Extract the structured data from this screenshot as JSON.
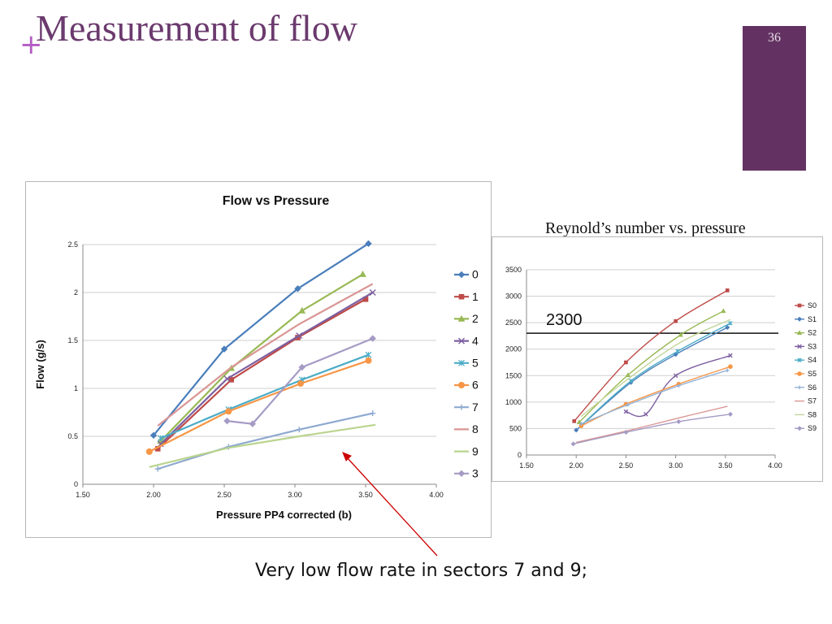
{
  "slide": {
    "plus": "+",
    "title": "Measurement of flow",
    "number": "36",
    "right_title": "Reynold’s number  vs. pressure",
    "caption": "Very low flow rate in sectors 7 and 9;",
    "accent_color": "#633262",
    "arrow_color": "#cc0000"
  },
  "chart_data": [
    {
      "type": "line",
      "title": "Flow vs Pressure",
      "xlabel": "Pressure PP4 corrected (b)",
      "ylabel": "Flow (g/s)",
      "xlim": [
        1.5,
        4.0
      ],
      "ylim": [
        0,
        2.5
      ],
      "xticks": [
        "1.50",
        "2.00",
        "2.50",
        "3.00",
        "3.50",
        "4.00"
      ],
      "yticks": [
        "0",
        "0.5",
        "1",
        "1.5",
        "2",
        "2.5"
      ],
      "grid": "horizontal",
      "legend": "right",
      "series": [
        {
          "name": "0",
          "color": "#4a7ebb",
          "marker": "diamond",
          "x": [
            2.0,
            2.5,
            3.02,
            3.52
          ],
          "y": [
            0.51,
            1.41,
            2.04,
            2.51
          ]
        },
        {
          "name": "1",
          "color": "#be4b48",
          "marker": "square",
          "x": [
            2.03,
            2.55,
            3.02,
            3.5
          ],
          "y": [
            0.37,
            1.09,
            1.53,
            1.93
          ]
        },
        {
          "name": "2",
          "color": "#98b954",
          "marker": "triangle",
          "x": [
            2.05,
            2.55,
            3.05,
            3.48
          ],
          "y": [
            0.45,
            1.21,
            1.81,
            2.19
          ]
        },
        {
          "name": "4",
          "color": "#7d60a0",
          "marker": "x",
          "x": [
            2.05,
            2.52,
            3.03,
            3.55
          ],
          "y": [
            0.42,
            1.1,
            1.55,
            2.0
          ]
        },
        {
          "name": "5",
          "color": "#4bacc6",
          "marker": "star",
          "x": [
            2.05,
            2.53,
            3.05,
            3.52
          ],
          "y": [
            0.48,
            0.78,
            1.09,
            1.35
          ]
        },
        {
          "name": "6",
          "color": "#f79646",
          "marker": "circle",
          "x": [
            1.97,
            2.53,
            3.04,
            3.52
          ],
          "y": [
            0.34,
            0.76,
            1.05,
            1.29
          ]
        },
        {
          "name": "7",
          "color": "#8ea9d0",
          "marker": "plus",
          "x": [
            2.03,
            2.53,
            3.03,
            3.55
          ],
          "y": [
            0.16,
            0.39,
            0.57,
            0.74
          ]
        },
        {
          "name": "8",
          "color": "#d99694",
          "marker": "none",
          "x": [
            2.03,
            2.55,
            3.03,
            3.55
          ],
          "y": [
            0.61,
            1.22,
            1.67,
            2.09
          ]
        },
        {
          "name": "9",
          "color": "#b9d48d",
          "marker": "none",
          "x": [
            1.97,
            2.53,
            3.03,
            3.57
          ],
          "y": [
            0.18,
            0.38,
            0.5,
            0.62
          ]
        },
        {
          "name": "3",
          "color": "#a59bc4",
          "marker": "diamond",
          "x": [
            2.52,
            2.7,
            3.05,
            3.55
          ],
          "y": [
            0.66,
            0.63,
            1.22,
            1.52
          ]
        }
      ],
      "annotation": "Very low flow rate in sectors 7 and 9;"
    },
    {
      "type": "line",
      "title": "Reynold’s number  vs. pressure",
      "xlim": [
        1.5,
        4.0
      ],
      "ylim": [
        0,
        3500
      ],
      "xticks": [
        "1.50",
        "2.00",
        "2.50",
        "3.00",
        "3.50",
        "4.00"
      ],
      "yticks": [
        "0",
        "500",
        "1000",
        "1500",
        "2000",
        "2500",
        "3000",
        "3500"
      ],
      "grid": "horizontal",
      "legend": "right",
      "reference_line": {
        "value": 2300,
        "label": "2300"
      },
      "series": [
        {
          "name": "S0",
          "color": "#be4b48",
          "marker": "square",
          "x": [
            1.98,
            2.5,
            3.0,
            3.52
          ],
          "y": [
            640,
            1750,
            2530,
            3110
          ]
        },
        {
          "name": "S1",
          "color": "#4a7ebb",
          "marker": "diamond",
          "x": [
            2.0,
            2.55,
            3.0,
            3.52
          ],
          "y": [
            470,
            1370,
            1900,
            2410
          ]
        },
        {
          "name": "S2",
          "color": "#98b954",
          "marker": "triangle",
          "x": [
            2.03,
            2.52,
            3.05,
            3.48
          ],
          "y": [
            620,
            1510,
            2270,
            2720
          ]
        },
        {
          "name": "S3",
          "color": "#7d60a0",
          "marker": "x",
          "x": [
            2.5,
            2.7,
            3.0,
            3.55
          ],
          "y": [
            820,
            770,
            1500,
            1880
          ]
        },
        {
          "name": "S4",
          "color": "#4bacc6",
          "marker": "star",
          "x": [
            2.05,
            2.55,
            3.02,
            3.55
          ],
          "y": [
            560,
            1400,
            1960,
            2490
          ]
        },
        {
          "name": "S5",
          "color": "#f79646",
          "marker": "circle",
          "x": [
            2.05,
            2.5,
            3.03,
            3.55
          ],
          "y": [
            550,
            960,
            1340,
            1670
          ]
        },
        {
          "name": "S6",
          "color": "#95b3d7",
          "marker": "plus",
          "x": [
            2.05,
            2.52,
            3.03,
            3.52
          ],
          "y": [
            590,
            950,
            1310,
            1600
          ]
        },
        {
          "name": "S7",
          "color": "#d99694",
          "marker": "none",
          "x": [
            2.0,
            2.52,
            3.03,
            3.52
          ],
          "y": [
            240,
            460,
            700,
            920
          ]
        },
        {
          "name": "S8",
          "color": "#c3d69b",
          "marker": "none",
          "x": [
            2.05,
            2.53,
            3.05,
            3.55
          ],
          "y": [
            730,
            1450,
            2130,
            2560
          ]
        },
        {
          "name": "S9",
          "color": "#a59bc4",
          "marker": "diamond",
          "x": [
            1.97,
            2.5,
            3.03,
            3.55
          ],
          "y": [
            210,
            430,
            630,
            770
          ]
        }
      ]
    }
  ]
}
